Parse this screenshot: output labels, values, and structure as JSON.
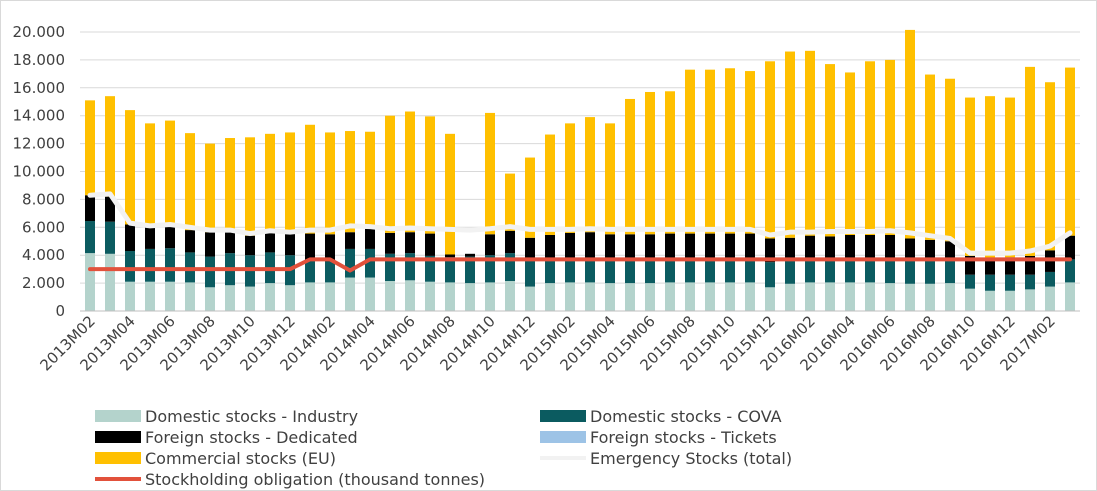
{
  "chart_data": {
    "type": "bar",
    "stacked": true,
    "categories": [
      "2013M02",
      "2013M03",
      "2013M04",
      "2013M05",
      "2013M06",
      "2013M07",
      "2013M08",
      "2013M09",
      "2013M10",
      "2013M11",
      "2013M12",
      "2014M01",
      "2014M02",
      "2014M03",
      "2014M04",
      "2014M05",
      "2014M06",
      "2014M07",
      "2014M08",
      "2014M09",
      "2014M10",
      "2014M11",
      "2014M12",
      "2015M01",
      "2015M02",
      "2015M03",
      "2015M04",
      "2015M05",
      "2015M06",
      "2015M07",
      "2015M08",
      "2015M09",
      "2015M10",
      "2015M11",
      "2015M12",
      "2016M01",
      "2016M02",
      "2016M03",
      "2016M04",
      "2016M05",
      "2016M06",
      "2016M07",
      "2016M08",
      "2016M09",
      "2016M10",
      "2016M11",
      "2016M12",
      "2017M01",
      "2017M02",
      "2017M03"
    ],
    "x_tick_labels": [
      "2013M02",
      "2013M04",
      "2013M06",
      "2013M08",
      "2013M10",
      "2013M12",
      "2014M02",
      "2014M04",
      "2014M06",
      "2014M08",
      "2014M10",
      "2014M12",
      "2015M02",
      "2015M04",
      "2015M06",
      "2015M08",
      "2015M10",
      "2015M12",
      "2016M02",
      "2016M04",
      "2016M06",
      "2016M08",
      "2016M10",
      "2016M12",
      "2017M02"
    ],
    "y_tick_labels": [
      "0",
      "2.000",
      "4.000",
      "6.000",
      "8.000",
      "10.000",
      "12.000",
      "14.000",
      "16.000",
      "18.000",
      "20.000"
    ],
    "ylim": [
      0,
      20000
    ],
    "grid": true,
    "legend_position": "bottom",
    "series": [
      {
        "name": "Domestic stocks - Industry",
        "kind": "bar",
        "color": "#b4d3cc",
        "values": [
          4150,
          4100,
          2100,
          2100,
          2100,
          2050,
          1700,
          1850,
          1750,
          2000,
          1850,
          2050,
          2050,
          2400,
          2400,
          2150,
          2200,
          2100,
          2050,
          2000,
          2050,
          2150,
          1750,
          2000,
          2050,
          2050,
          2000,
          2000,
          2000,
          2050,
          2050,
          2050,
          2050,
          2050,
          1700,
          1950,
          2050,
          2050,
          2050,
          2050,
          2000,
          1950,
          1950,
          2000,
          1600,
          1450,
          1450,
          1550,
          1750,
          2050
        ]
      },
      {
        "name": "Domestic stocks - COVA",
        "kind": "bar",
        "color": "#0b5b60",
        "values": [
          2300,
          2300,
          2200,
          2350,
          2400,
          2150,
          2200,
          2300,
          2250,
          2200,
          2150,
          1550,
          1500,
          2050,
          2050,
          1950,
          1950,
          1850,
          1800,
          1900,
          1950,
          2000,
          1900,
          1650,
          1650,
          1650,
          1650,
          1650,
          1650,
          1650,
          1650,
          1650,
          1650,
          1650,
          1800,
          1700,
          1650,
          1650,
          1650,
          1650,
          1650,
          1650,
          1650,
          1650,
          1000,
          1150,
          1150,
          1050,
          1050,
          1650
        ]
      },
      {
        "name": "Foreign stocks - Dedicated",
        "kind": "bar",
        "color": "#000000",
        "values": [
          1850,
          1800,
          1900,
          1550,
          1550,
          1600,
          1750,
          1500,
          1400,
          1400,
          1600,
          1950,
          1950,
          1200,
          1450,
          1500,
          1500,
          1600,
          200,
          200,
          1500,
          1600,
          1600,
          1800,
          1900,
          1950,
          1850,
          1850,
          1850,
          1850,
          1850,
          1850,
          1850,
          1850,
          1700,
          1600,
          1700,
          1650,
          1750,
          1750,
          1800,
          1600,
          1500,
          1350,
          1350,
          1150,
          1250,
          1350,
          1550,
          1700
        ]
      },
      {
        "name": "Foreign stocks - Tickets",
        "kind": "bar",
        "color": "#9dc3e6",
        "values": [
          0,
          0,
          0,
          0,
          0,
          0,
          0,
          0,
          0,
          0,
          0,
          0,
          0,
          0,
          0,
          0,
          0,
          0,
          0,
          0,
          0,
          0,
          0,
          0,
          0,
          0,
          0,
          0,
          0,
          0,
          0,
          0,
          0,
          0,
          0,
          0,
          0,
          0,
          0,
          0,
          0,
          0,
          0,
          0,
          0,
          0,
          0,
          0,
          0,
          0
        ]
      },
      {
        "name": "Commercial stocks (EU)",
        "kind": "bar",
        "color": "#ffc000",
        "values": [
          6800,
          7200,
          8200,
          7450,
          7600,
          6950,
          6350,
          6750,
          7050,
          7100,
          7200,
          7800,
          7300,
          7250,
          6950,
          8400,
          8650,
          8400,
          8650,
          0,
          8700,
          4100,
          5750,
          7200,
          7850,
          8250,
          7950,
          9700,
          10200,
          10200,
          11750,
          11750,
          11850,
          11650,
          12700,
          13350,
          13250,
          12350,
          11650,
          12450,
          12550,
          14950,
          11850,
          11650,
          11350,
          11650,
          11450,
          13550,
          12050,
          12050
        ]
      },
      {
        "name": "Emergency Stocks (total)",
        "kind": "line",
        "color": "#f2f2f2",
        "values": [
          8300,
          8400,
          6300,
          6100,
          6200,
          6000,
          5800,
          5800,
          5550,
          5750,
          5650,
          5800,
          5800,
          6100,
          6050,
          5900,
          5950,
          5900,
          5850,
          5800,
          5900,
          6050,
          5850,
          5850,
          5850,
          5900,
          5850,
          5850,
          5850,
          5850,
          5850,
          5850,
          5850,
          5850,
          5450,
          5650,
          5650,
          5700,
          5700,
          5700,
          5750,
          5600,
          5400,
          5200,
          4150,
          4150,
          4150,
          4300,
          4650,
          5600
        ]
      },
      {
        "name": "Stockholding obligation (thousand tonnes)",
        "kind": "line",
        "color": "#e2513b",
        "values": [
          3000,
          3000,
          3000,
          3000,
          3000,
          3000,
          3000,
          3000,
          3000,
          3000,
          3000,
          3700,
          3700,
          2900,
          3700,
          3700,
          3700,
          3700,
          3700,
          3700,
          3700,
          3700,
          3700,
          3700,
          3700,
          3700,
          3700,
          3700,
          3700,
          3700,
          3700,
          3700,
          3700,
          3700,
          3700,
          3700,
          3700,
          3700,
          3700,
          3700,
          3700,
          3700,
          3700,
          3700,
          3700,
          3700,
          3700,
          3700,
          3700,
          3700
        ]
      }
    ]
  }
}
